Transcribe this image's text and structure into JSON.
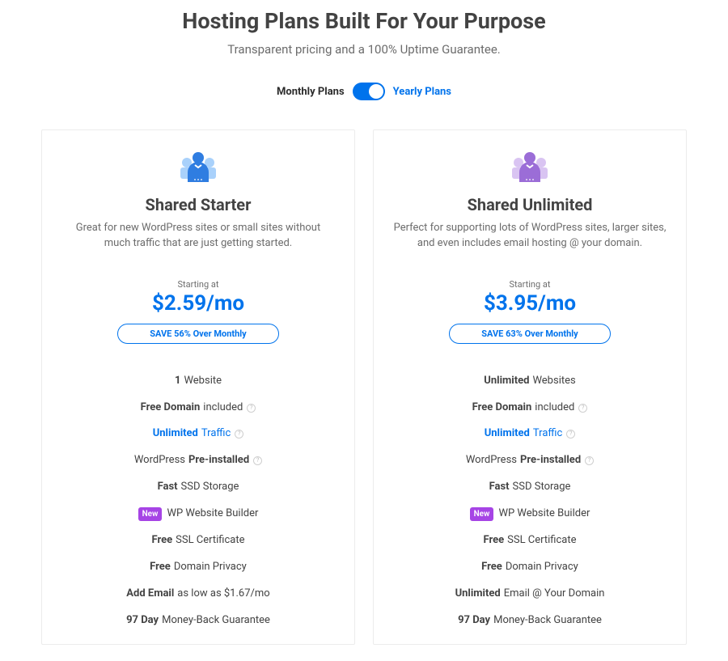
{
  "colors": {
    "accent": "#0073ec",
    "text_dark": "#434343",
    "text_muted": "#6c6c6c",
    "border": "#ececec",
    "purple": "#a644e5",
    "icon_blue_light": "#a9d1fb",
    "icon_blue_dark": "#2f7de1",
    "icon_purple_light": "#d9c4f2",
    "icon_purple_dark": "#9b6dd7"
  },
  "header": {
    "title": "Hosting Plans Built For Your Purpose",
    "subtitle": "Transparent pricing and a 100% Uptime Guarantee."
  },
  "toggle": {
    "monthly_label": "Monthly Plans",
    "yearly_label": "Yearly Plans",
    "on_yearly": true
  },
  "plans": [
    {
      "name": "Shared Starter",
      "description": "Great for new WordPress sites or small sites without much traffic that are just getting started.",
      "starting_label": "Starting at",
      "price": "$2.59/mo",
      "save_text": "SAVE 56% Over Monthly",
      "icon_palette": "blue",
      "features": [
        {
          "bold": "1",
          "rest": "Website"
        },
        {
          "bold": "Free Domain",
          "rest": "included",
          "info": true
        },
        {
          "link_bold": "Unlimited",
          "link_rest": "Traffic",
          "info": true
        },
        {
          "pre": "WordPress",
          "bold": "Pre-installed",
          "info": true
        },
        {
          "bold": "Fast",
          "rest": "SSD Storage"
        },
        {
          "badge": "New",
          "rest": "WP Website Builder"
        },
        {
          "bold": "Free",
          "rest": "SSL Certificate"
        },
        {
          "bold": "Free",
          "rest": "Domain Privacy"
        },
        {
          "bold": "Add Email",
          "rest": "as low as $1.67/mo"
        },
        {
          "bold": "97 Day",
          "rest": "Money-Back Guarantee"
        }
      ]
    },
    {
      "name": "Shared Unlimited",
      "description": "Perfect for supporting lots of WordPress sites, larger sites, and even includes email hosting @ your domain.",
      "starting_label": "Starting at",
      "price": "$3.95/mo",
      "save_text": "SAVE 63% Over Monthly",
      "icon_palette": "purple",
      "features": [
        {
          "bold": "Unlimited",
          "rest": "Websites"
        },
        {
          "bold": "Free Domain",
          "rest": "included",
          "info": true
        },
        {
          "link_bold": "Unlimited",
          "link_rest": "Traffic",
          "info": true
        },
        {
          "pre": "WordPress",
          "bold": "Pre-installed",
          "info": true
        },
        {
          "bold": "Fast",
          "rest": "SSD Storage"
        },
        {
          "badge": "New",
          "rest": "WP Website Builder"
        },
        {
          "bold": "Free",
          "rest": "SSL Certificate"
        },
        {
          "bold": "Free",
          "rest": "Domain Privacy"
        },
        {
          "bold": "Unlimited",
          "rest": "Email @ Your Domain"
        },
        {
          "bold": "97 Day",
          "rest": "Money-Back Guarantee"
        }
      ]
    }
  ]
}
